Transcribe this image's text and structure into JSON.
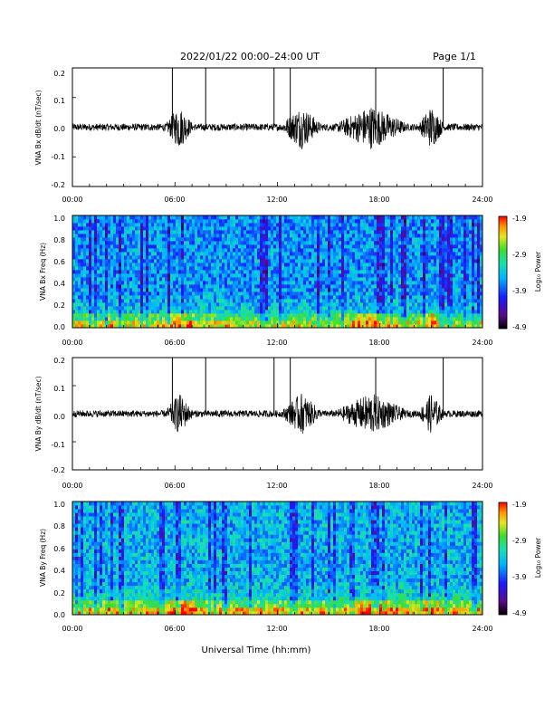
{
  "header": {
    "title": "2022/01/22  00:00–24:00 UT",
    "page": "Page 1/1"
  },
  "x_tick_labels": [
    "00:00",
    "06:00",
    "12:00",
    "18:00",
    "24:00"
  ],
  "x_axis_label": "Universal Time (hh:mm)",
  "colorbar": {
    "label": "Log₁₀ Power",
    "tick_labels": [
      "-1.9",
      "-2.9",
      "-3.9",
      "-4.9"
    ]
  },
  "chart_data": [
    {
      "type": "line",
      "ylabel": "VNA Bx dB/dt (nT/sec)",
      "xlim": [
        0,
        24
      ],
      "ylim": [
        -0.2,
        0.2
      ],
      "y_tick_labels": [
        "0.2",
        "0.1",
        "0.0",
        "-0.1",
        "-0.2"
      ],
      "spikes_hours": [
        5.85,
        7.8,
        11.8,
        12.75,
        17.75,
        21.7
      ],
      "activity_hours": [
        [
          5.5,
          7.0
        ],
        [
          12.3,
          14.5
        ],
        [
          15.5,
          19.5
        ],
        [
          20.3,
          21.7
        ]
      ]
    },
    {
      "type": "heatmap",
      "ylabel": "VNA Bx Freq (Hz)",
      "xlim": [
        0,
        24
      ],
      "ylim": [
        0,
        1.0
      ],
      "y_tick_labels": [
        "1.0",
        "0.8",
        "0.6",
        "0.4",
        "0.2",
        "0.0"
      ],
      "zlim": [
        -4.9,
        -1.9
      ],
      "zlabel": "Log10 Power"
    },
    {
      "type": "line",
      "ylabel": "VNA By dB/dt (nT/sec)",
      "xlim": [
        0,
        24
      ],
      "ylim": [
        -0.2,
        0.2
      ],
      "y_tick_labels": [
        "0.2",
        "0.1",
        "0.0",
        "-0.1",
        "-0.2"
      ],
      "spikes_hours": [
        5.85,
        7.8,
        11.8,
        12.75,
        17.75,
        21.7
      ],
      "activity_hours": [
        [
          5.5,
          7.0
        ],
        [
          12.3,
          14.5
        ],
        [
          15.5,
          19.5
        ],
        [
          20.3,
          21.7
        ]
      ]
    },
    {
      "type": "heatmap",
      "ylabel": "VNA By Freq (Hz)",
      "xlim": [
        0,
        24
      ],
      "ylim": [
        0,
        1.0
      ],
      "y_tick_labels": [
        "1.0",
        "0.8",
        "0.6",
        "0.4",
        "0.2",
        "0.0"
      ],
      "zlim": [
        -4.9,
        -1.9
      ],
      "zlabel": "Log10 Power"
    }
  ]
}
